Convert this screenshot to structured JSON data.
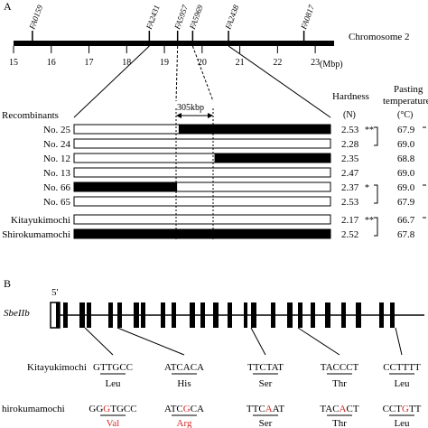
{
  "panel_a": {
    "label": "A",
    "chromosome_label": "Chromosome 2",
    "unit": "(Mbp)",
    "scale_ticks": [
      "15",
      "16",
      "17",
      "18",
      "19",
      "20",
      "21",
      "22",
      "23"
    ],
    "markers": [
      {
        "name": "FA0159",
        "pos": 15.5
      },
      {
        "name": "FA2431",
        "pos": 18.6
      },
      {
        "name": "FA5957",
        "pos": 19.35
      },
      {
        "name": "FA5969",
        "pos": 19.75
      },
      {
        "name": "FA2438",
        "pos": 20.7
      },
      {
        "name": "FA0817",
        "pos": 22.7
      }
    ],
    "region_label": "305kbp",
    "recombinants_label": "Recombinants",
    "col_hardness": {
      "title": "Hardness",
      "unit": "(N)"
    },
    "col_pasting": {
      "title1": "Pasting",
      "title2": "temperature",
      "unit": "(°C)"
    },
    "rows": [
      {
        "name": "No. 25",
        "hardness": "2.53",
        "pasting": "67.9",
        "sig_h": "**",
        "segments": [
          [
            "w",
            0,
            0.41
          ],
          [
            "b",
            0.41,
            1
          ]
        ]
      },
      {
        "name": "No. 24",
        "hardness": "2.28",
        "pasting": "69.0",
        "sig_h": "",
        "segments": [
          [
            "w",
            0,
            1
          ]
        ]
      },
      {
        "name": "No. 12",
        "hardness": "2.35",
        "pasting": "68.8",
        "sig_h": "",
        "segments": [
          [
            "w",
            0,
            0.55
          ],
          [
            "b",
            0.55,
            1
          ]
        ]
      },
      {
        "name": "No. 13",
        "hardness": "2.47",
        "pasting": "69.0",
        "sig_h": "",
        "segments": [
          [
            "w",
            0,
            1
          ]
        ]
      },
      {
        "name": "No. 66",
        "hardness": "2.37",
        "pasting": "69.0",
        "sig_h": "*",
        "segments": [
          [
            "b",
            0,
            0.4
          ],
          [
            "w",
            0.4,
            1
          ]
        ]
      },
      {
        "name": "No. 65",
        "hardness": "2.53",
        "pasting": "67.9",
        "sig_h": "",
        "segments": [
          [
            "w",
            0,
            1
          ]
        ]
      },
      {
        "name": "Kitayukimochi",
        "hardness": "2.17",
        "pasting": "66.7",
        "sig_h": "**",
        "segments": [
          [
            "w",
            0,
            1
          ]
        ]
      },
      {
        "name": "Shirokumamochi",
        "hardness": "2.52",
        "pasting": "67.8",
        "sig_h": "",
        "segments": [
          [
            "b",
            0,
            1
          ]
        ]
      }
    ]
  },
  "panel_b": {
    "label": "B",
    "five_prime": "5'",
    "gene": "SbeIIb",
    "variety1": "Kitayukimochi",
    "variety2": "hirokumamochi",
    "codons": [
      {
        "k_pre": "G",
        "k_mid": "TTG",
        "k_post": "CC",
        "k_aa": "Leu",
        "s_pre": "G",
        "s_mid": "G",
        "s_red": "G",
        "s_tail": "TGCC",
        "s_aa": "Val",
        "aa_changed": true
      },
      {
        "k_pre": "AT",
        "k_mid": "CAC",
        "k_post": "A",
        "k_aa": "His",
        "s_pre": "AT",
        "s_mid": "C",
        "s_red": "G",
        "s_tail": "CA",
        "s_aa": "Arg",
        "aa_changed": true
      },
      {
        "k_pre": "T",
        "k_mid": "TCT",
        "k_post": "AT",
        "k_aa": "Ser",
        "s_pre": "T",
        "s_mid": "TC",
        "s_red": "A",
        "s_tail": "AT",
        "s_aa": "Ser",
        "aa_changed": false
      },
      {
        "k_pre": "T",
        "k_mid": "ACC",
        "k_post": "CT",
        "k_aa": "Thr",
        "s_pre": "T",
        "s_mid": "AC",
        "s_red": "A",
        "s_tail": "CT",
        "s_aa": "Thr",
        "aa_changed": false
      },
      {
        "k_pre": "C",
        "k_mid": "CTT",
        "k_post": "TT",
        "k_aa": "Leu",
        "s_pre": "C",
        "s_mid": "CT",
        "s_red": "G",
        "s_tail": "TT",
        "s_aa": "Leu",
        "aa_changed": false
      }
    ]
  }
}
